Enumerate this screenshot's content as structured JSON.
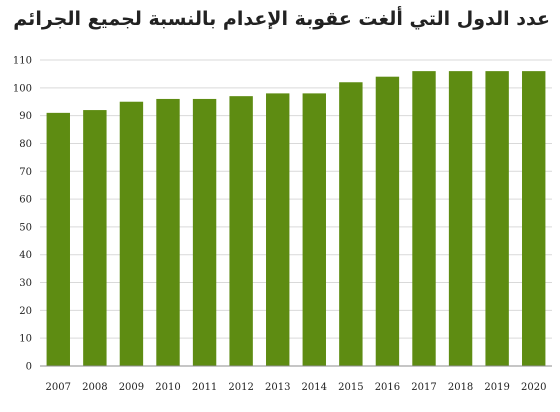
{
  "chart_data": {
    "type": "bar",
    "title": "عدد الدول التي ألغت عقوبة الإعدام بالنسبة لجميع الجرائم",
    "categories": [
      "2007",
      "2008",
      "2009",
      "2010",
      "2011",
      "2012",
      "2013",
      "2014",
      "2015",
      "2016",
      "2017",
      "2018",
      "2019",
      "2020"
    ],
    "values": [
      91,
      92,
      95,
      96,
      96,
      97,
      98,
      98,
      102,
      104,
      106,
      106,
      106,
      106
    ],
    "ylim": [
      0,
      110
    ],
    "yticks": [
      0,
      10,
      20,
      30,
      40,
      50,
      60,
      70,
      80,
      90,
      100,
      110
    ],
    "grid": true,
    "legend": "none",
    "colors": {
      "bar": "#5e8c12",
      "grid": "#d9d9d9",
      "axis": "#8c8c8c"
    }
  }
}
